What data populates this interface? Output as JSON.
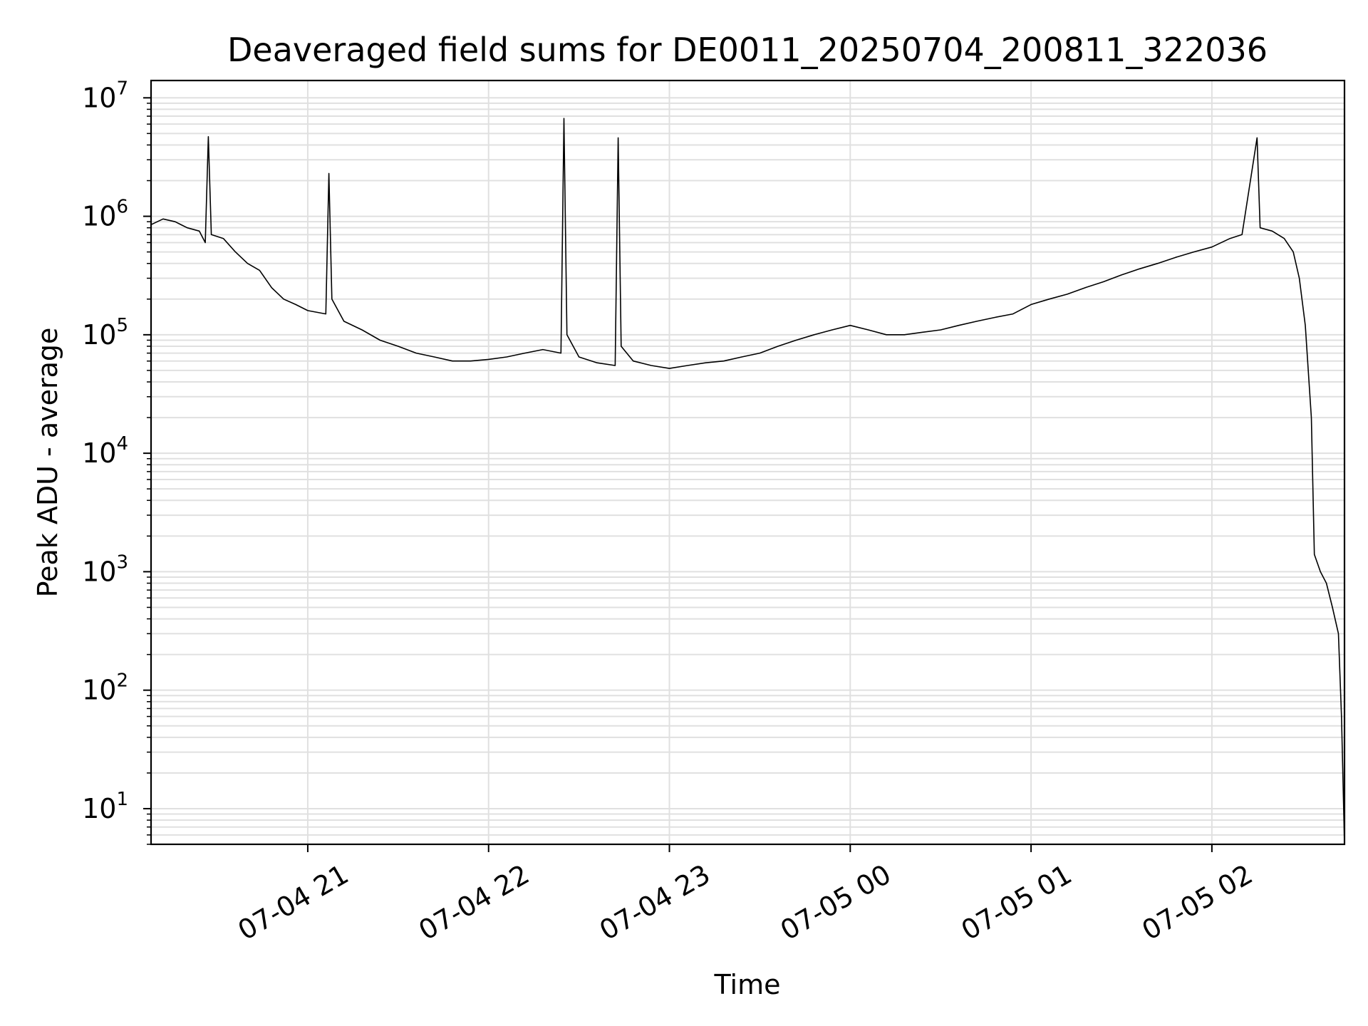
{
  "chart_data": {
    "type": "line",
    "title": "Deaveraged field sums for DE0011_20250704_200811_322036",
    "xlabel": "Time",
    "ylabel": "Peak ADU - average",
    "y_scale": "log",
    "ylim": [
      5,
      14000000
    ],
    "xlim": [
      "2025-07-04 20:08",
      "2025-07-05 02:44"
    ],
    "grid": true,
    "grid_color": "#e0e0e0",
    "line_color": "#000000",
    "y_ticks": [
      {
        "value": 10,
        "base": "10",
        "exp": "1"
      },
      {
        "value": 100,
        "base": "10",
        "exp": "2"
      },
      {
        "value": 1000,
        "base": "10",
        "exp": "3"
      },
      {
        "value": 10000,
        "base": "10",
        "exp": "4"
      },
      {
        "value": 100000,
        "base": "10",
        "exp": "5"
      },
      {
        "value": 1000000,
        "base": "10",
        "exp": "6"
      },
      {
        "value": 10000000,
        "base": "10",
        "exp": "7"
      }
    ],
    "x_ticks": [
      {
        "value": "2025-07-04 21:00",
        "label": "07-04 21"
      },
      {
        "value": "2025-07-04 22:00",
        "label": "07-04 22"
      },
      {
        "value": "2025-07-04 23:00",
        "label": "07-04 23"
      },
      {
        "value": "2025-07-05 00:00",
        "label": "07-05 00"
      },
      {
        "value": "2025-07-05 01:00",
        "label": "07-05 01"
      },
      {
        "value": "2025-07-05 02:00",
        "label": "07-05 02"
      }
    ],
    "series": [
      {
        "points": [
          [
            "2025-07-04 20:08",
            850000
          ],
          [
            "2025-07-04 20:12",
            950000
          ],
          [
            "2025-07-04 20:16",
            900000
          ],
          [
            "2025-07-04 20:20",
            800000
          ],
          [
            "2025-07-04 20:24",
            750000
          ],
          [
            "2025-07-04 20:26",
            600000
          ],
          [
            "2025-07-04 20:27",
            4700000
          ],
          [
            "2025-07-04 20:28",
            700000
          ],
          [
            "2025-07-04 20:32",
            650000
          ],
          [
            "2025-07-04 20:36",
            500000
          ],
          [
            "2025-07-04 20:40",
            400000
          ],
          [
            "2025-07-04 20:44",
            350000
          ],
          [
            "2025-07-04 20:48",
            250000
          ],
          [
            "2025-07-04 20:52",
            200000
          ],
          [
            "2025-07-04 20:56",
            180000
          ],
          [
            "2025-07-04 21:00",
            160000
          ],
          [
            "2025-07-04 21:06",
            150000
          ],
          [
            "2025-07-04 21:07",
            2300000
          ],
          [
            "2025-07-04 21:08",
            200000
          ],
          [
            "2025-07-04 21:12",
            130000
          ],
          [
            "2025-07-04 21:18",
            110000
          ],
          [
            "2025-07-04 21:24",
            90000
          ],
          [
            "2025-07-04 21:30",
            80000
          ],
          [
            "2025-07-04 21:36",
            70000
          ],
          [
            "2025-07-04 21:42",
            65000
          ],
          [
            "2025-07-04 21:48",
            60000
          ],
          [
            "2025-07-04 21:54",
            60000
          ],
          [
            "2025-07-04 22:00",
            62000
          ],
          [
            "2025-07-04 22:06",
            65000
          ],
          [
            "2025-07-04 22:12",
            70000
          ],
          [
            "2025-07-04 22:18",
            75000
          ],
          [
            "2025-07-04 22:24",
            70000
          ],
          [
            "2025-07-04 22:25",
            6700000
          ],
          [
            "2025-07-04 22:26",
            100000
          ],
          [
            "2025-07-04 22:30",
            65000
          ],
          [
            "2025-07-04 22:36",
            58000
          ],
          [
            "2025-07-04 22:42",
            55000
          ],
          [
            "2025-07-04 22:43",
            4600000
          ],
          [
            "2025-07-04 22:44",
            80000
          ],
          [
            "2025-07-04 22:48",
            60000
          ],
          [
            "2025-07-04 22:54",
            55000
          ],
          [
            "2025-07-04 23:00",
            52000
          ],
          [
            "2025-07-04 23:06",
            55000
          ],
          [
            "2025-07-04 23:12",
            58000
          ],
          [
            "2025-07-04 23:18",
            60000
          ],
          [
            "2025-07-04 23:24",
            65000
          ],
          [
            "2025-07-04 23:30",
            70000
          ],
          [
            "2025-07-04 23:36",
            80000
          ],
          [
            "2025-07-04 23:42",
            90000
          ],
          [
            "2025-07-04 23:48",
            100000
          ],
          [
            "2025-07-04 23:54",
            110000
          ],
          [
            "2025-07-05 00:00",
            120000
          ],
          [
            "2025-07-05 00:06",
            110000
          ],
          [
            "2025-07-05 00:12",
            100000
          ],
          [
            "2025-07-05 00:18",
            100000
          ],
          [
            "2025-07-05 00:24",
            105000
          ],
          [
            "2025-07-05 00:30",
            110000
          ],
          [
            "2025-07-05 00:36",
            120000
          ],
          [
            "2025-07-05 00:42",
            130000
          ],
          [
            "2025-07-05 00:48",
            140000
          ],
          [
            "2025-07-05 00:54",
            150000
          ],
          [
            "2025-07-05 01:00",
            180000
          ],
          [
            "2025-07-05 01:06",
            200000
          ],
          [
            "2025-07-05 01:12",
            220000
          ],
          [
            "2025-07-05 01:18",
            250000
          ],
          [
            "2025-07-05 01:24",
            280000
          ],
          [
            "2025-07-05 01:30",
            320000
          ],
          [
            "2025-07-05 01:36",
            360000
          ],
          [
            "2025-07-05 01:42",
            400000
          ],
          [
            "2025-07-05 01:48",
            450000
          ],
          [
            "2025-07-05 01:54",
            500000
          ],
          [
            "2025-07-05 02:00",
            550000
          ],
          [
            "2025-07-05 02:06",
            650000
          ],
          [
            "2025-07-05 02:10",
            700000
          ],
          [
            "2025-07-05 02:15",
            4600000
          ],
          [
            "2025-07-05 02:16",
            800000
          ],
          [
            "2025-07-05 02:20",
            750000
          ],
          [
            "2025-07-05 02:24",
            650000
          ],
          [
            "2025-07-05 02:27",
            500000
          ],
          [
            "2025-07-05 02:29",
            300000
          ],
          [
            "2025-07-05 02:31",
            120000
          ],
          [
            "2025-07-05 02:33",
            20000
          ],
          [
            "2025-07-05 02:34",
            1400
          ],
          [
            "2025-07-05 02:36",
            1000
          ],
          [
            "2025-07-05 02:38",
            800
          ],
          [
            "2025-07-05 02:40",
            500
          ],
          [
            "2025-07-05 02:42",
            300
          ],
          [
            "2025-07-05 02:43",
            60
          ],
          [
            "2025-07-05 02:44",
            5
          ]
        ]
      }
    ]
  }
}
